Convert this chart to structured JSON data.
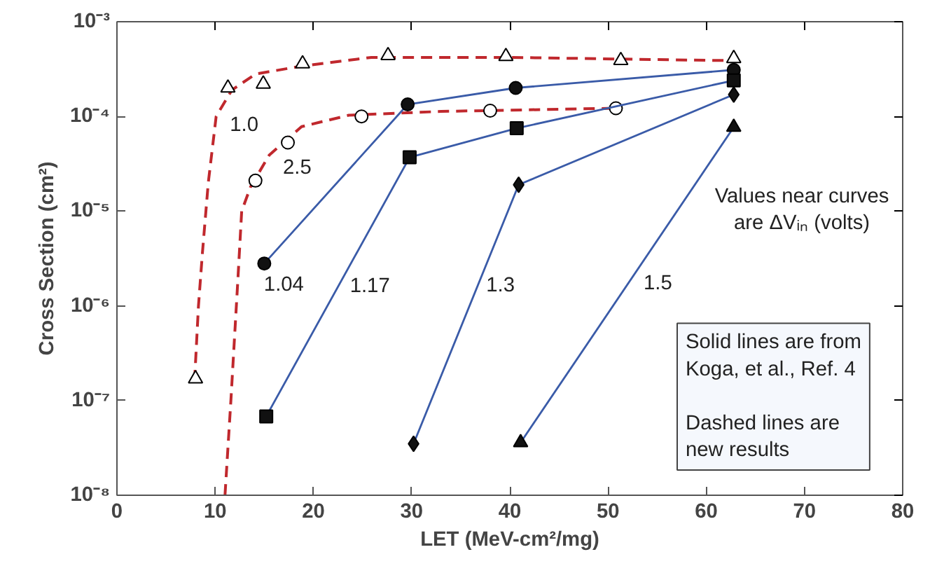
{
  "chart_data": {
    "type": "line",
    "xlabel": "LET (MeV-cm²/mg)",
    "ylabel": "Cross Section (cm²)",
    "log": "y",
    "xlim": [
      0,
      80
    ],
    "xticks": [
      0,
      10,
      20,
      30,
      40,
      50,
      60,
      70,
      80
    ],
    "ylim": [
      1e-08,
      0.001
    ],
    "yticks": [
      {
        "value": 1e-08,
        "label": "10⁻⁸"
      },
      {
        "value": 1e-07,
        "label": "10⁻⁷"
      },
      {
        "value": 1e-06,
        "label": "10⁻⁶"
      },
      {
        "value": 1e-05,
        "label": "10⁻⁵"
      },
      {
        "value": 0.0001,
        "label": "10⁻⁴"
      },
      {
        "value": 0.001,
        "label": "10⁻³"
      }
    ],
    "grid": false,
    "legend": false,
    "series": [
      {
        "name": "1.0",
        "line_style": "dashed",
        "marker": "none",
        "color": "#c0282d",
        "x": [
          7.9,
          8.3,
          8.7,
          9.3,
          10.1,
          11.7,
          14.1,
          18.8,
          25.9,
          40,
          61,
          62.8
        ],
        "values": [
          1.6e-07,
          1e-06,
          3.6e-06,
          2e-05,
          0.0001,
          0.00019,
          0.00028,
          0.00034,
          0.00042,
          0.00042,
          0.00039,
          0.00039
        ]
      },
      {
        "name": "2.5",
        "line_style": "dashed",
        "marker": "none",
        "color": "#c0282d",
        "x": [
          11.0,
          11.6,
          12.3,
          12.7,
          13.6,
          15.5,
          18.8,
          23.6,
          33,
          50.8
        ],
        "values": [
          1e-08,
          1e-07,
          1.8e-06,
          1e-05,
          1.8e-05,
          3.9e-05,
          7.8e-05,
          0.000103,
          0.000113,
          0.000122
        ]
      },
      {
        "type": "scatter",
        "marker": "triangle",
        "color": "#000000",
        "x": [
          8.0,
          11.3,
          14.9,
          18.9,
          27.6,
          39.6,
          51.3,
          62.8
        ],
        "values": [
          1.7e-07,
          0.0002,
          0.00022,
          0.00036,
          0.00044,
          0.00043,
          0.00039,
          0.00041
        ]
      },
      {
        "type": "scatter",
        "marker": "circle",
        "color": "#000000",
        "x": [
          14.1,
          17.4,
          24.9,
          38.0,
          50.8
        ],
        "values": [
          2.1e-05,
          5.3e-05,
          0.0001,
          0.000115,
          0.000122
        ]
      },
      {
        "name": "1.04",
        "line_style": "solid",
        "marker": "circle",
        "color": "#3a5ba8",
        "x": [
          15.0,
          29.6,
          40.6,
          62.8
        ],
        "values": [
          2.8e-06,
          0.000134,
          0.0002,
          0.00031
        ]
      },
      {
        "name": "1.17",
        "line_style": "solid",
        "marker": "square",
        "color": "#3a5ba8",
        "x": [
          15.2,
          29.8,
          40.7,
          62.8
        ],
        "values": [
          6.8e-08,
          3.7e-05,
          7.5e-05,
          0.00024
        ]
      },
      {
        "name": "1.3",
        "line_style": "solid",
        "marker": "diamond",
        "color": "#3a5ba8",
        "x": [
          30.2,
          40.9,
          62.8
        ],
        "values": [
          3.5e-08,
          1.9e-05,
          0.00017
        ]
      },
      {
        "name": "1.5",
        "line_style": "solid",
        "marker": "triangle",
        "color": "#3a5ba8",
        "x": [
          41.1,
          62.8
        ],
        "values": [
          3.6e-08,
          7.7e-05
        ]
      }
    ],
    "annotations": [
      "Values near curves\nare ΔVᵢₙ (volts)",
      "Solid lines are from\nKoga, et al., Ref. 4\n\nDashed lines are\nnew results"
    ]
  }
}
